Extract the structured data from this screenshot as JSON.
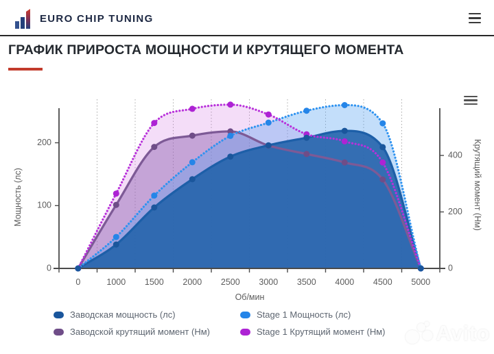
{
  "header": {
    "brand": "EURO CHIP TUNING",
    "menu_icon": "hamburger-icon"
  },
  "page": {
    "title": "ГРАФИК ПРИРОСТА МОЩНОСТИ И КРУТЯЩЕГО МОМЕНТА"
  },
  "theme": {
    "accent_red": "#c23b2c",
    "brand_navy": "#1c2742",
    "axis_gray": "#4a4a4a",
    "label_gray": "#5c5c5c"
  },
  "chart_data": {
    "type": "line",
    "x_categories": [
      0,
      1000,
      1500,
      2000,
      2500,
      3000,
      3500,
      4000,
      4500,
      5000
    ],
    "xlabel": "Об/мин",
    "ylabel_left": "Мощность (лс)",
    "ylabel_right": "Крутящий момент (Нм)",
    "y_left_ticks": [
      0,
      100,
      200
    ],
    "y_right_ticks": [
      0,
      200,
      400
    ],
    "ylim_left": [
      0,
      280
    ],
    "ylim_right": [
      0,
      620
    ],
    "grid": "vertical-dotted",
    "legend_position": "bottom",
    "series": [
      {
        "name": "Заводская мощность (лс)",
        "axis": "left",
        "style": "solid",
        "color": "#1d5fa8",
        "dot_color": "#1a569c",
        "fill": "rgba(37,100,172,0.9)",
        "values": [
          0,
          38,
          97,
          142,
          178,
          196,
          208,
          219,
          193,
          0
        ]
      },
      {
        "name": "Stage 1 Мощность (лс)",
        "axis": "left",
        "style": "dotted",
        "color": "#2f93f0",
        "dot_color": "#2585e8",
        "fill": "rgba(84,160,240,0.35)",
        "values": [
          0,
          50,
          116,
          169,
          211,
          232,
          251,
          260,
          231,
          0
        ]
      },
      {
        "name": "Заводской крутящий момент (Нм)",
        "axis": "right",
        "style": "solid",
        "color": "#7d5a96",
        "dot_color": "#6f4d88",
        "fill": "rgba(140,95,175,0.45)",
        "values": [
          0,
          225,
          430,
          470,
          485,
          435,
          405,
          375,
          315,
          0
        ]
      },
      {
        "name": "Stage 1 Крутящий момент (Нм)",
        "axis": "right",
        "style": "dotted",
        "color": "#b831da",
        "dot_color": "#ad23d4",
        "fill": "rgba(205,100,225,0.22)",
        "values": [
          0,
          265,
          515,
          565,
          580,
          545,
          475,
          450,
          375,
          0
        ]
      }
    ]
  },
  "watermark": {
    "text": "Avito"
  }
}
